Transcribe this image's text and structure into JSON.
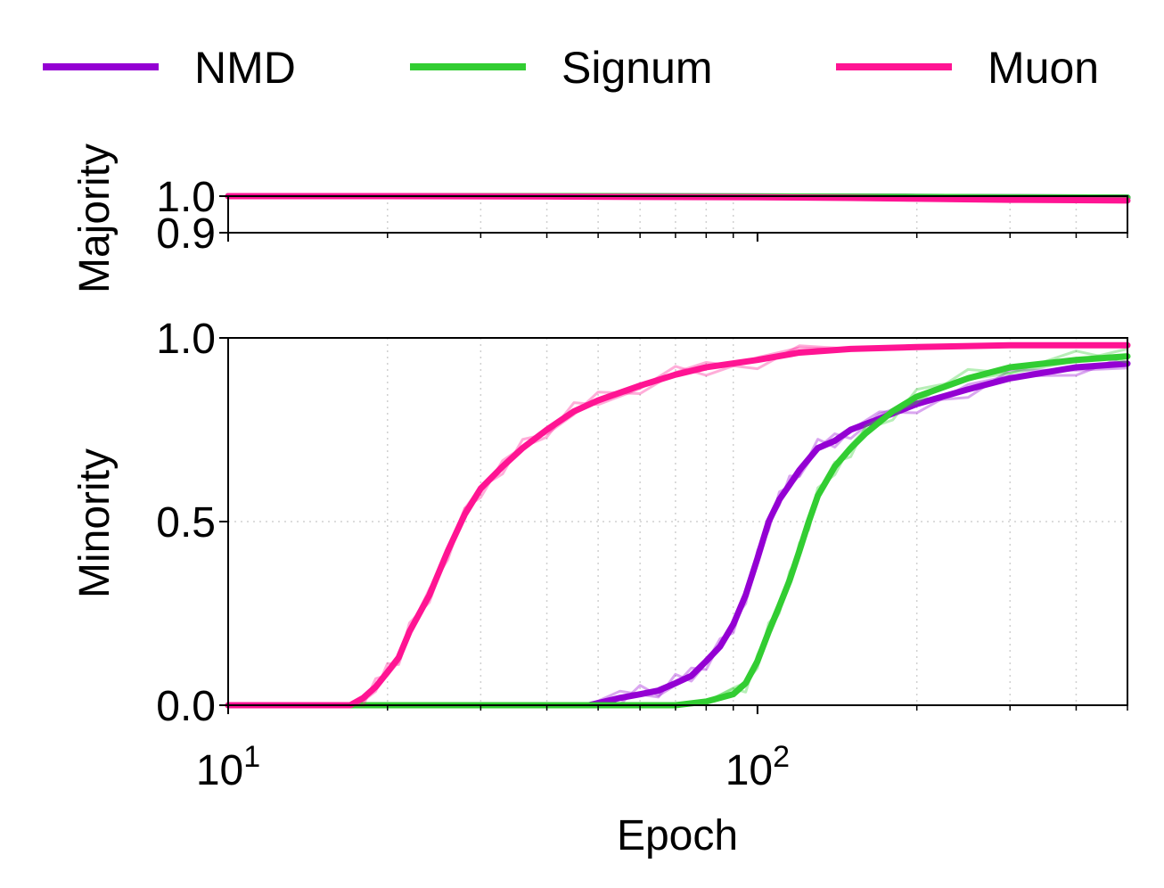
{
  "chart_data": {
    "type": "line",
    "x_scale": "log",
    "xlabel": "Epoch",
    "xlim": [
      10,
      500
    ],
    "x_ticks": [
      {
        "value": 10,
        "base": "10",
        "exp": "1"
      },
      {
        "value": 100,
        "base": "10",
        "exp": "2"
      }
    ],
    "legend": {
      "placement": "top",
      "entries": [
        {
          "name": "NMD",
          "color": "#9400d3"
        },
        {
          "name": "Signum",
          "color": "#32cd32"
        },
        {
          "name": "Muon",
          "color": "#ff1493"
        }
      ]
    },
    "panels": [
      {
        "id": "majority",
        "ylabel": "Majority",
        "ylim": [
          0.9,
          1.0
        ],
        "y_ticks": [
          "1.0",
          "0.9"
        ],
        "grid": true,
        "series": [
          {
            "name": "NMD",
            "color": "#9400d3",
            "x": [
              10,
              20,
              50,
              100,
              200,
              300,
              500
            ],
            "y": [
              1.0,
              1.0,
              1.0,
              0.999,
              0.998,
              0.997,
              0.996
            ]
          },
          {
            "name": "Signum",
            "color": "#32cd32",
            "x": [
              10,
              20,
              50,
              100,
              200,
              300,
              500
            ],
            "y": [
              1.0,
              1.0,
              1.0,
              0.999,
              0.998,
              0.997,
              0.996
            ]
          },
          {
            "name": "Muon",
            "color": "#ff1493",
            "x": [
              10,
              20,
              40,
              60,
              100,
              150,
              200,
              300,
              400,
              500
            ],
            "y": [
              1.0,
              1.0,
              0.999,
              0.998,
              0.997,
              0.995,
              0.993,
              0.99,
              0.989,
              0.988
            ]
          }
        ]
      },
      {
        "id": "minority",
        "ylabel": "Minority",
        "ylim": [
          0.0,
          1.0
        ],
        "y_ticks": [
          "1.0",
          "0.5",
          "0.0"
        ],
        "grid": true,
        "series": [
          {
            "name": "NMD",
            "color": "#9400d3",
            "x": [
              48,
              55,
              60,
              65,
              70,
              75,
              80,
              85,
              90,
              95,
              100,
              105,
              110,
              115,
              120,
              130,
              140,
              150,
              170,
              200,
              250,
              300,
              400,
              500
            ],
            "y": [
              0.0,
              0.02,
              0.03,
              0.04,
              0.06,
              0.08,
              0.12,
              0.16,
              0.22,
              0.3,
              0.4,
              0.5,
              0.56,
              0.6,
              0.64,
              0.7,
              0.72,
              0.75,
              0.78,
              0.82,
              0.86,
              0.89,
              0.92,
              0.93
            ]
          },
          {
            "name": "Signum",
            "color": "#32cd32",
            "x": [
              10,
              50,
              70,
              80,
              90,
              95,
              100,
              105,
              110,
              115,
              120,
              125,
              130,
              140,
              150,
              160,
              180,
              200,
              250,
              300,
              400,
              500
            ],
            "y": [
              0.0,
              0.0,
              0.0,
              0.01,
              0.03,
              0.06,
              0.12,
              0.2,
              0.27,
              0.34,
              0.42,
              0.5,
              0.57,
              0.65,
              0.7,
              0.74,
              0.8,
              0.84,
              0.89,
              0.92,
              0.94,
              0.95
            ]
          },
          {
            "name": "Muon",
            "color": "#ff1493",
            "x": [
              10,
              17,
              18,
              19,
              20,
              21,
              22,
              24,
              26,
              28,
              30,
              33,
              36,
              40,
              45,
              50,
              60,
              70,
              80,
              100,
              120,
              150,
              200,
              300,
              500
            ],
            "y": [
              0.0,
              0.0,
              0.02,
              0.05,
              0.09,
              0.13,
              0.2,
              0.3,
              0.42,
              0.52,
              0.59,
              0.65,
              0.7,
              0.75,
              0.8,
              0.83,
              0.87,
              0.9,
              0.92,
              0.94,
              0.96,
              0.97,
              0.975,
              0.98,
              0.98
            ]
          }
        ]
      }
    ]
  }
}
